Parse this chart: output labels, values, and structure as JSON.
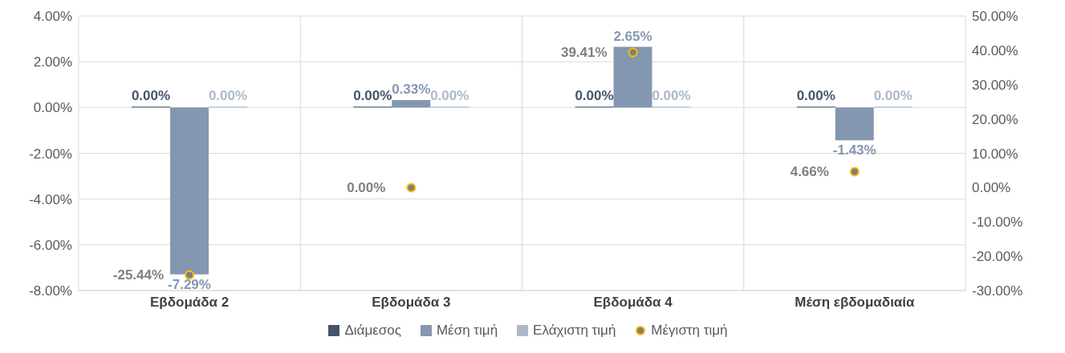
{
  "chart_data": {
    "type": "bar",
    "categories": [
      "Εβδομάδα 2",
      "Εβδομάδα 3",
      "Εβδομάδα 4",
      "Μέση εβδομαδιαία"
    ],
    "series": [
      {
        "name": "Διάμεσος",
        "color": "#44546a",
        "values": [
          0,
          0,
          0,
          0
        ],
        "value_labels": [
          "0.00%",
          "0.00%",
          "0.00%",
          "0.00%"
        ]
      },
      {
        "name": "Μέση τιμή",
        "color": "#8497b0",
        "values": [
          -7.29,
          0.33,
          2.65,
          -1.43
        ],
        "value_labels": [
          "-7.29%",
          "0.33%",
          "2.65%",
          "-1.43%"
        ]
      },
      {
        "name": "Ελάχιστη τιμή",
        "color": "#adb9ca",
        "values": [
          0,
          0,
          0,
          0
        ],
        "value_labels": [
          "0.00%",
          "0.00%",
          "0.00%",
          "0.00%"
        ]
      },
      {
        "name": "Μέγιστη τιμή",
        "type": "scatter",
        "axis": "y2",
        "marker": "circle",
        "color": "#7f7f7f",
        "values": [
          -25.44,
          0,
          39.41,
          4.66
        ],
        "value_labels": [
          "-25.44%",
          "0.00%",
          "39.41%",
          "4.66%"
        ]
      }
    ],
    "ylim": [
      -8,
      4
    ],
    "yticks": [
      {
        "value": -8,
        "label": "-8.00%"
      },
      {
        "value": -6,
        "label": "-6.00%"
      },
      {
        "value": -4,
        "label": "-4.00%"
      },
      {
        "value": -2,
        "label": "-2.00%"
      },
      {
        "value": 0,
        "label": "0.00%"
      },
      {
        "value": 2,
        "label": "2.00%"
      },
      {
        "value": 4,
        "label": "4.00%"
      }
    ],
    "y2lim": [
      -30,
      50
    ],
    "y2ticks": [
      {
        "value": -30,
        "label": "-30.00%"
      },
      {
        "value": -20,
        "label": "-20.00%"
      },
      {
        "value": -10,
        "label": "-10.00%"
      },
      {
        "value": 0,
        "label": "0.00%"
      },
      {
        "value": 10,
        "label": "10.00%"
      },
      {
        "value": 20,
        "label": "20.00%"
      },
      {
        "value": 30,
        "label": "30.00%"
      },
      {
        "value": 40,
        "label": "40.00%"
      },
      {
        "value": 50,
        "label": "50.00%"
      }
    ],
    "grid": true,
    "legend": "bottom"
  }
}
